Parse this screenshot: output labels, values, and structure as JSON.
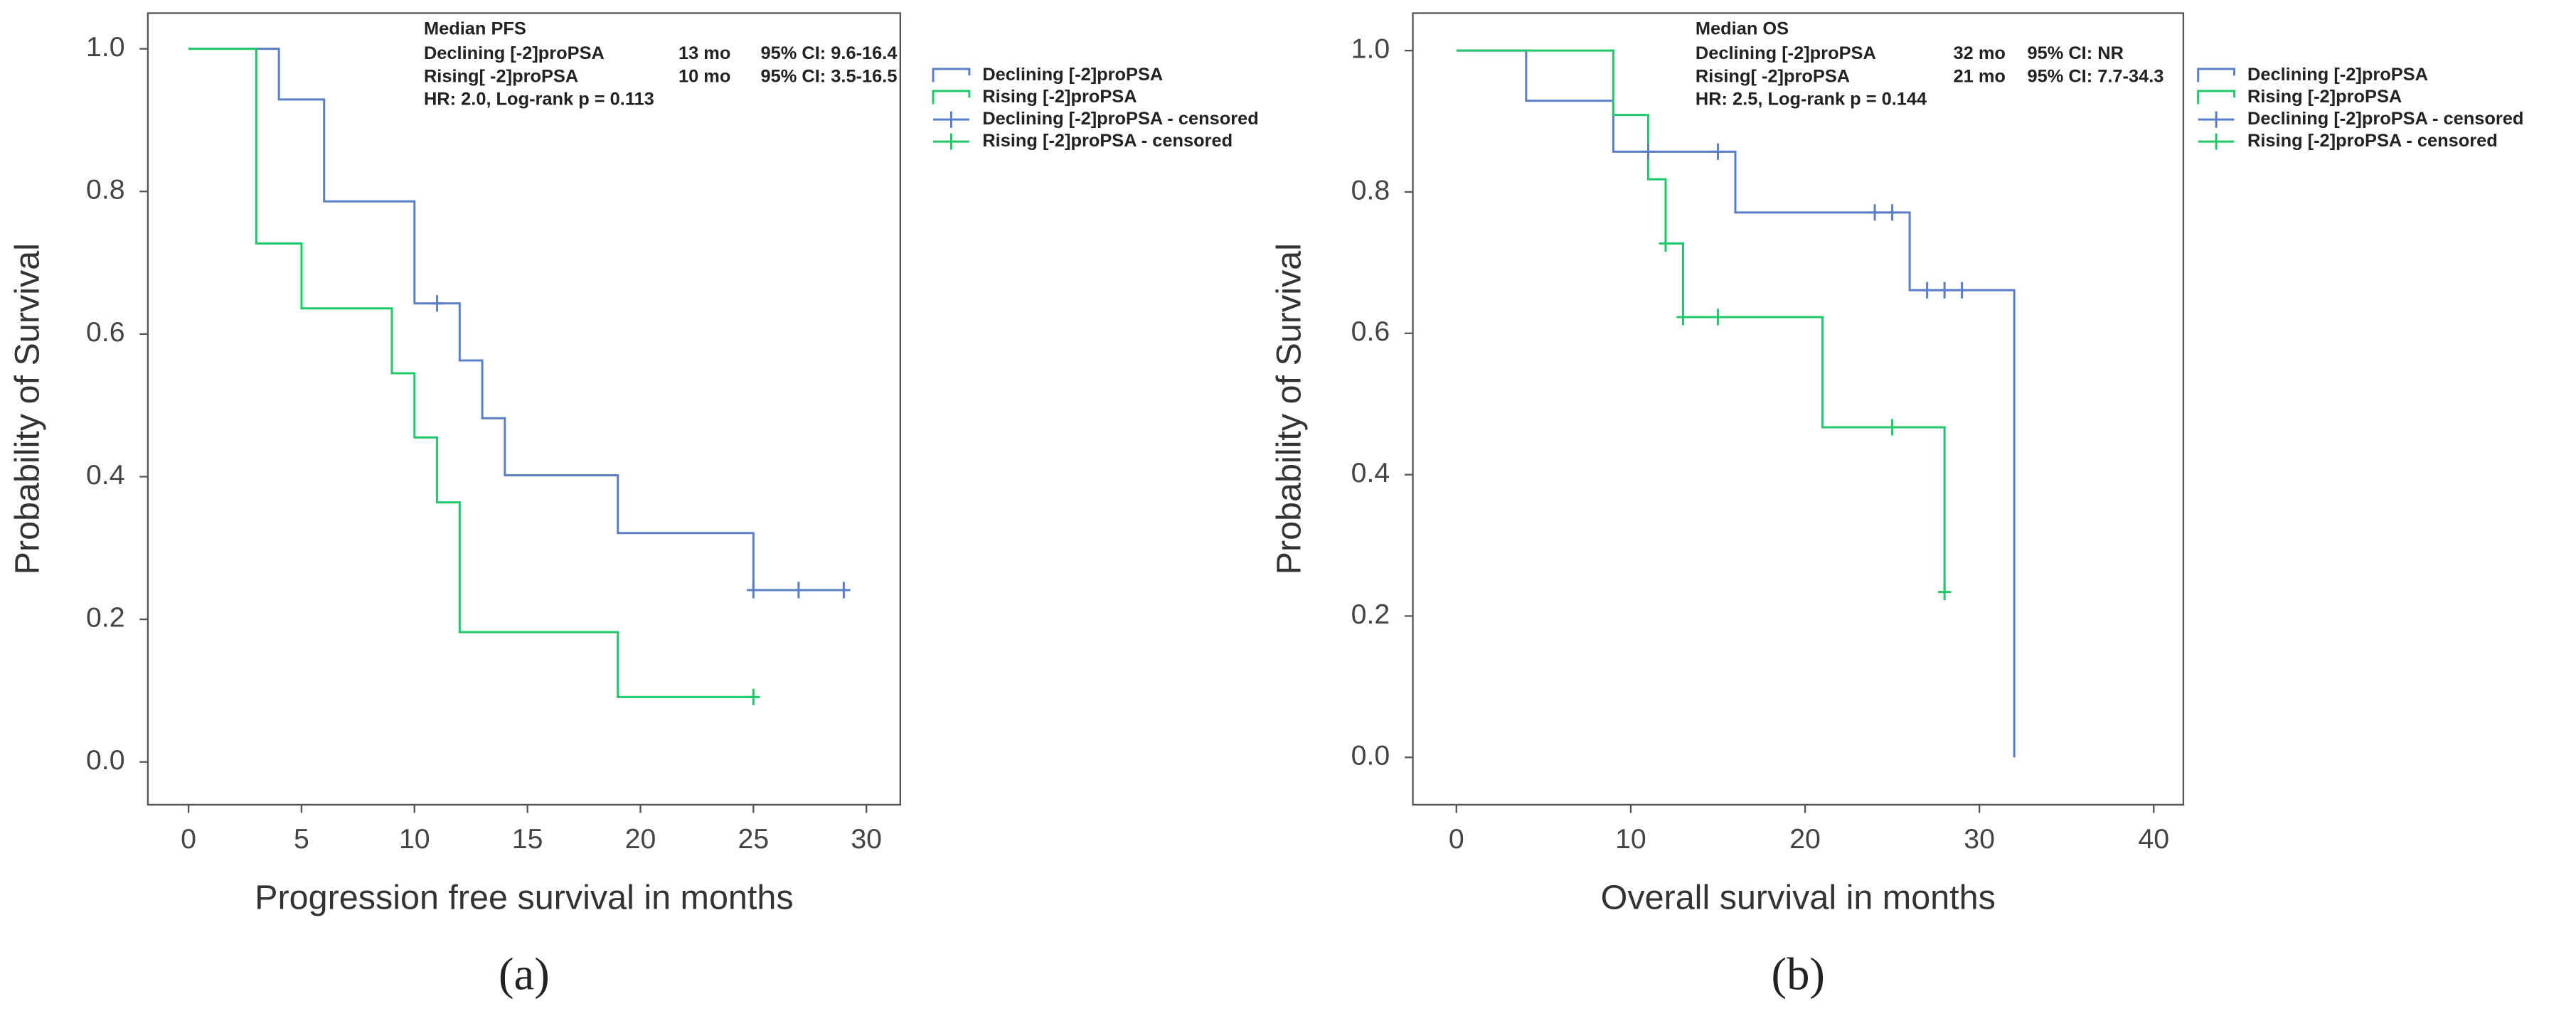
{
  "chart_data": [
    {
      "type": "step",
      "label": "(a)",
      "xlabel": "Progression free survival in months",
      "ylabel": "Probability of Survival",
      "xlim": [
        -1.8,
        31.5
      ],
      "ylim": [
        -0.06,
        1.05
      ],
      "xticks": [
        0,
        5,
        10,
        15,
        20,
        25,
        30
      ],
      "yticks": [
        {
          "value": 0,
          "label": "0.0"
        },
        0.2,
        0.4,
        0.6,
        0.8,
        {
          "value": 1,
          "label": "1.0"
        }
      ],
      "annotation": {
        "title": "Median PFS",
        "rows": [
          [
            "Declining [-2]proPSA",
            "13 mo",
            "95% CI: 9.6-16.4"
          ],
          [
            "Rising[ -2]proPSA",
            "10 mo",
            "95% CI: 3.5-16.5"
          ]
        ],
        "footer": "HR: 2.0, Log-rank p = 0.113"
      },
      "series": [
        {
          "name": "Declining [-2]proPSA",
          "color": "#5b7fc7",
          "x": [
            0,
            4,
            6,
            10,
            12,
            13,
            14,
            19,
            25,
            29
          ],
          "values": [
            1,
            0.929,
            0.786,
            0.643,
            0.563,
            0.482,
            0.402,
            0.321,
            0.241,
            0.241
          ]
        },
        {
          "name": "Rising [-2]proPSA",
          "color": "#1fc96a",
          "x": [
            0,
            3,
            5,
            9,
            10,
            11,
            12,
            19,
            25
          ],
          "values": [
            1,
            0.727,
            0.636,
            0.545,
            0.455,
            0.364,
            0.182,
            0.091,
            0.091
          ]
        },
        {
          "name": "Declining [-2]proPSA - censored",
          "color": "#5b7fc7",
          "marker": "+",
          "x": [
            11,
            25,
            27,
            29
          ],
          "values": [
            0.643,
            0.241,
            0.241,
            0.241
          ]
        },
        {
          "name": "Rising [-2]proPSA - censored",
          "color": "#1fc96a",
          "marker": "+",
          "x": [
            25
          ],
          "values": [
            0.091
          ]
        }
      ]
    },
    {
      "type": "step",
      "label": "(b)",
      "xlabel": "Overall survival in months",
      "ylabel": "Probability of Survival",
      "xlim": [
        -2.5,
        41.7
      ],
      "ylim": [
        -0.067,
        1.053
      ],
      "xticks": [
        0,
        10,
        20,
        30,
        40
      ],
      "yticks": [
        {
          "value": 0,
          "label": "0.0"
        },
        0.2,
        0.4,
        0.6,
        0.8,
        {
          "value": 1,
          "label": "1.0"
        }
      ],
      "annotation": {
        "title": "Median OS",
        "rows": [
          [
            "Declining [-2]proPSA",
            "32 mo",
            "95% CI: NR"
          ],
          [
            "Rising[ -2]proPSA",
            "21 mo",
            "95% CI: 7.7-34.3"
          ]
        ],
        "footer": "HR: 2.5, Log-rank p = 0.144"
      },
      "series": [
        {
          "name": "Declining [-2]proPSA",
          "color": "#5b7fc7",
          "x": [
            0,
            4,
            9,
            16,
            26,
            32
          ],
          "values": [
            1,
            0.929,
            0.857,
            0.771,
            0.661,
            0
          ]
        },
        {
          "name": "Rising [-2]proPSA",
          "color": "#1fc96a",
          "x": [
            0,
            9,
            11,
            12,
            13,
            21,
            28
          ],
          "values": [
            1,
            0.909,
            0.818,
            0.727,
            0.623,
            0.467,
            0.234
          ]
        },
        {
          "name": "Declining [-2]proPSA - censored",
          "color": "#5b7fc7",
          "marker": "+",
          "x": [
            11,
            15,
            24,
            25,
            27,
            28,
            29
          ],
          "values": [
            0.857,
            0.857,
            0.771,
            0.771,
            0.661,
            0.661,
            0.661
          ]
        },
        {
          "name": "Rising [-2]proPSA - censored",
          "color": "#1fc96a",
          "marker": "+",
          "x": [
            12,
            13,
            15,
            25,
            28
          ],
          "values": [
            0.727,
            0.623,
            0.623,
            0.467,
            0.234
          ]
        }
      ]
    }
  ]
}
